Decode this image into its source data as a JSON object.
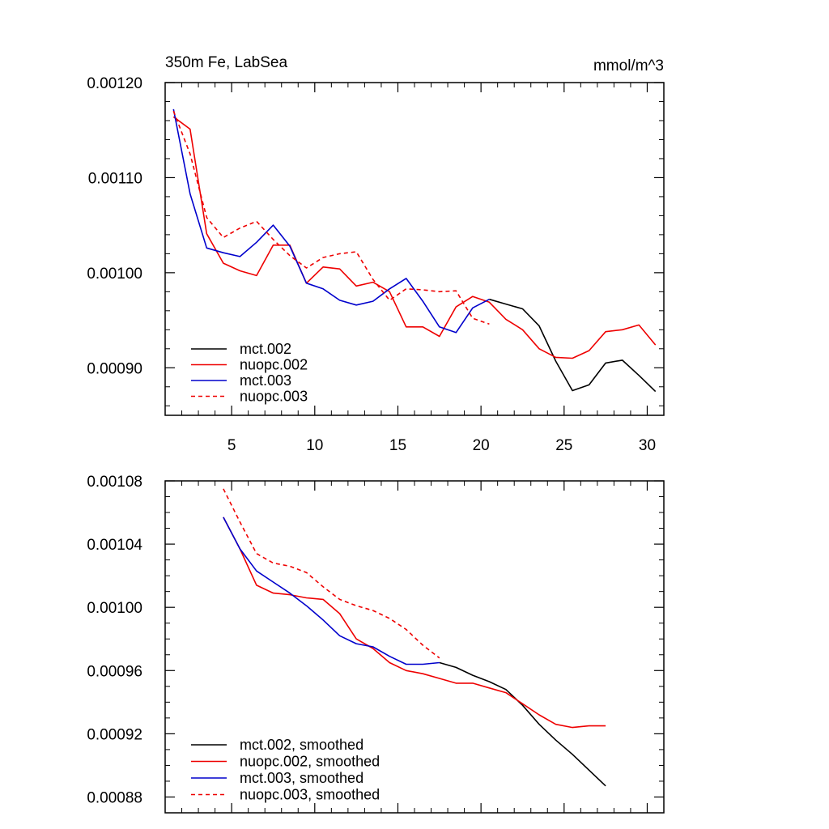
{
  "chart_data": [
    {
      "type": "line",
      "title": "350m Fe, LabSea",
      "units": "mmol/m^3",
      "xlim": [
        1,
        31
      ],
      "ylim": [
        0.00085,
        0.0012
      ],
      "xticks": [
        5,
        10,
        15,
        20,
        25,
        30
      ],
      "xtick_labels": [
        "5",
        "10",
        "15",
        "20",
        "25",
        "30"
      ],
      "yticks": [
        0.0009,
        0.001,
        0.0011,
        0.0012
      ],
      "ytick_labels": [
        "0.00090",
        "0.00100",
        "0.00110",
        "0.00120"
      ],
      "series": [
        {
          "name": "mct.002",
          "color": "#000000",
          "dash": "solid",
          "x": [
            20.5,
            21.5,
            22.5,
            23.5,
            24.5,
            25.5,
            26.5,
            27.5,
            28.5,
            29.5,
            30.5
          ],
          "values": [
            0.000972,
            0.000967,
            0.000962,
            0.000944,
            0.000907,
            0.000876,
            0.000882,
            0.000905,
            0.000908,
            0.000892,
            0.000875
          ]
        },
        {
          "name": "nuopc.002",
          "color": "#ee0000",
          "dash": "solid",
          "x": [
            1.5,
            2.5,
            3.5,
            4.5,
            5.5,
            6.5,
            7.5,
            8.5,
            9.5,
            10.5,
            11.5,
            12.5,
            13.5,
            14.5,
            15.5,
            16.5,
            17.5,
            18.5,
            19.5,
            20.5,
            21.5,
            22.5,
            23.5,
            24.5,
            25.5,
            26.5,
            27.5,
            28.5,
            29.5,
            30.5
          ],
          "values": [
            0.001164,
            0.001151,
            0.001041,
            0.00101,
            0.001002,
            0.000997,
            0.001029,
            0.001029,
            0.000989,
            0.001006,
            0.001004,
            0.000986,
            0.00099,
            0.00098,
            0.000943,
            0.000943,
            0.000933,
            0.000964,
            0.000975,
            0.000969,
            0.000951,
            0.00094,
            0.00092,
            0.000911,
            0.00091,
            0.000918,
            0.000938,
            0.00094,
            0.000945,
            0.000924
          ]
        },
        {
          "name": "mct.003",
          "color": "#0000cc",
          "dash": "solid",
          "x": [
            1.5,
            2.5,
            3.5,
            4.5,
            5.5,
            6.5,
            7.5,
            8.5,
            9.5,
            10.5,
            11.5,
            12.5,
            13.5,
            14.5,
            15.5,
            16.5,
            17.5,
            18.5,
            19.5,
            20.5
          ],
          "values": [
            0.001172,
            0.001083,
            0.001026,
            0.001021,
            0.001017,
            0.001032,
            0.00105,
            0.001028,
            0.000989,
            0.000983,
            0.000971,
            0.000966,
            0.00097,
            0.000983,
            0.000994,
            0.00097,
            0.000943,
            0.000937,
            0.000963,
            0.000972
          ]
        },
        {
          "name": "nuopc.003",
          "color": "#ee0000",
          "dash": "dashed",
          "x": [
            1.5,
            2.5,
            3.5,
            4.5,
            5.5,
            6.5,
            7.5,
            8.5,
            9.5,
            10.5,
            11.5,
            12.5,
            13.5,
            14.5,
            15.5,
            16.5,
            17.5,
            18.5,
            19.5,
            20.5
          ],
          "values": [
            0.00117,
            0.001125,
            0.001058,
            0.001037,
            0.001047,
            0.001054,
            0.001035,
            0.001018,
            0.001005,
            0.001016,
            0.00102,
            0.001022,
            0.000993,
            0.000971,
            0.000983,
            0.000982,
            0.00098,
            0.000981,
            0.000952,
            0.000946
          ]
        }
      ]
    },
    {
      "type": "line",
      "xlim": [
        1,
        31
      ],
      "ylim": [
        0.00087,
        0.00108
      ],
      "xticks": [
        5,
        10,
        15,
        20,
        25,
        30
      ],
      "yticks": [
        0.00088,
        0.00092,
        0.00096,
        0.001,
        0.00104,
        0.00108
      ],
      "ytick_labels": [
        "0.00088",
        "0.00092",
        "0.00096",
        "0.00100",
        "0.00104",
        "0.00108"
      ],
      "series": [
        {
          "name": "mct.002, smoothed",
          "color": "#000000",
          "dash": "solid",
          "x": [
            17.5,
            18.5,
            19.5,
            20.5,
            21.5,
            22.5,
            23.5,
            24.5,
            25.5,
            26.5,
            27.5
          ],
          "values": [
            0.000965,
            0.000962,
            0.000957,
            0.000953,
            0.000948,
            0.000938,
            0.000926,
            0.000916,
            0.000907,
            0.000897,
            0.000887
          ]
        },
        {
          "name": "nuopc.002, smoothed",
          "color": "#ee0000",
          "dash": "solid",
          "x": [
            4.5,
            5.5,
            6.5,
            7.5,
            8.5,
            9.5,
            10.5,
            11.5,
            12.5,
            13.5,
            14.5,
            15.5,
            16.5,
            17.5,
            18.5,
            19.5,
            20.5,
            21.5,
            22.5,
            23.5,
            24.5,
            25.5,
            26.5,
            27.5
          ],
          "values": [
            0.001057,
            0.001037,
            0.001014,
            0.001009,
            0.001008,
            0.001006,
            0.001005,
            0.000996,
            0.00098,
            0.000974,
            0.000965,
            0.00096,
            0.000958,
            0.000955,
            0.000952,
            0.000952,
            0.000949,
            0.000946,
            0.000939,
            0.000932,
            0.000926,
            0.000924,
            0.000925,
            0.000925
          ]
        },
        {
          "name": "mct.003, smoothed",
          "color": "#0000cc",
          "dash": "solid",
          "x": [
            4.5,
            5.5,
            6.5,
            7.5,
            8.5,
            9.5,
            10.5,
            11.5,
            12.5,
            13.5,
            14.5,
            15.5,
            16.5,
            17.5
          ],
          "values": [
            0.001057,
            0.001037,
            0.001023,
            0.001016,
            0.001009,
            0.001001,
            0.000992,
            0.000982,
            0.000977,
            0.000975,
            0.000969,
            0.000964,
            0.000964,
            0.000965
          ]
        },
        {
          "name": "nuopc.003, smoothed",
          "color": "#ee0000",
          "dash": "dashed",
          "x": [
            4.5,
            5.5,
            6.5,
            7.5,
            8.5,
            9.5,
            10.5,
            11.5,
            12.5,
            13.5,
            14.5,
            15.5,
            16.5,
            17.5
          ],
          "values": [
            0.001075,
            0.001054,
            0.001034,
            0.001028,
            0.001026,
            0.001022,
            0.001013,
            0.001005,
            0.001001,
            0.000998,
            0.000993,
            0.000986,
            0.000976,
            0.000968
          ]
        }
      ]
    }
  ]
}
